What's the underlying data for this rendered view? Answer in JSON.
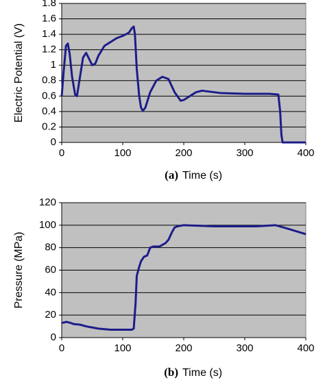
{
  "chart_data": [
    {
      "type": "line",
      "panel": "(a)",
      "xlabel": "Time (s)",
      "ylabel": "Electric Potential (V)",
      "xlim": [
        0,
        400
      ],
      "xticks": [
        0,
        100,
        200,
        300,
        400
      ],
      "ylim": [
        0,
        1.8
      ],
      "yticks": [
        0,
        0.2,
        0.4,
        0.6,
        0.8,
        1,
        1.2,
        1.4,
        1.6,
        1.8
      ],
      "grid": true,
      "series": [
        {
          "color": "#1c1c8a",
          "x": [
            0,
            3,
            7,
            10,
            13,
            17,
            22,
            25,
            30,
            35,
            40,
            45,
            50,
            55,
            60,
            70,
            80,
            90,
            100,
            110,
            115,
            118,
            120,
            123,
            127,
            130,
            133,
            137,
            145,
            155,
            165,
            175,
            185,
            195,
            200,
            210,
            220,
            230,
            240,
            260,
            300,
            340,
            355,
            358,
            360,
            362,
            400
          ],
          "values": [
            0.6,
            0.9,
            1.25,
            1.28,
            1.15,
            0.85,
            0.62,
            0.6,
            0.85,
            1.1,
            1.16,
            1.08,
            1.0,
            1.02,
            1.12,
            1.25,
            1.3,
            1.35,
            1.38,
            1.42,
            1.48,
            1.5,
            1.4,
            0.95,
            0.6,
            0.45,
            0.41,
            0.45,
            0.65,
            0.8,
            0.85,
            0.82,
            0.65,
            0.54,
            0.55,
            0.6,
            0.65,
            0.67,
            0.66,
            0.64,
            0.63,
            0.63,
            0.62,
            0.4,
            0.1,
            0,
            0
          ]
        }
      ]
    },
    {
      "type": "line",
      "panel": "(b)",
      "xlabel": "Time (s)",
      "ylabel": "Pressure (MPa)",
      "xlim": [
        0,
        400
      ],
      "xticks": [
        0,
        100,
        200,
        300,
        400
      ],
      "ylim": [
        0,
        120
      ],
      "yticks": [
        0,
        20,
        40,
        60,
        80,
        100,
        120
      ],
      "grid": true,
      "series": [
        {
          "color": "#1c1c8a",
          "x": [
            0,
            8,
            15,
            20,
            30,
            40,
            50,
            60,
            80,
            100,
            115,
            118,
            121,
            123,
            127,
            130,
            135,
            140,
            145,
            150,
            160,
            170,
            175,
            180,
            185,
            190,
            200,
            250,
            300,
            320,
            350,
            370,
            400
          ],
          "values": [
            13,
            14,
            13,
            12,
            11.5,
            10,
            9,
            8,
            7,
            7,
            7,
            8,
            30,
            55,
            63,
            68,
            72,
            73,
            80,
            81,
            81,
            84,
            87,
            93,
            98,
            99,
            100,
            99,
            99,
            99,
            100,
            97,
            92
          ]
        }
      ]
    }
  ]
}
